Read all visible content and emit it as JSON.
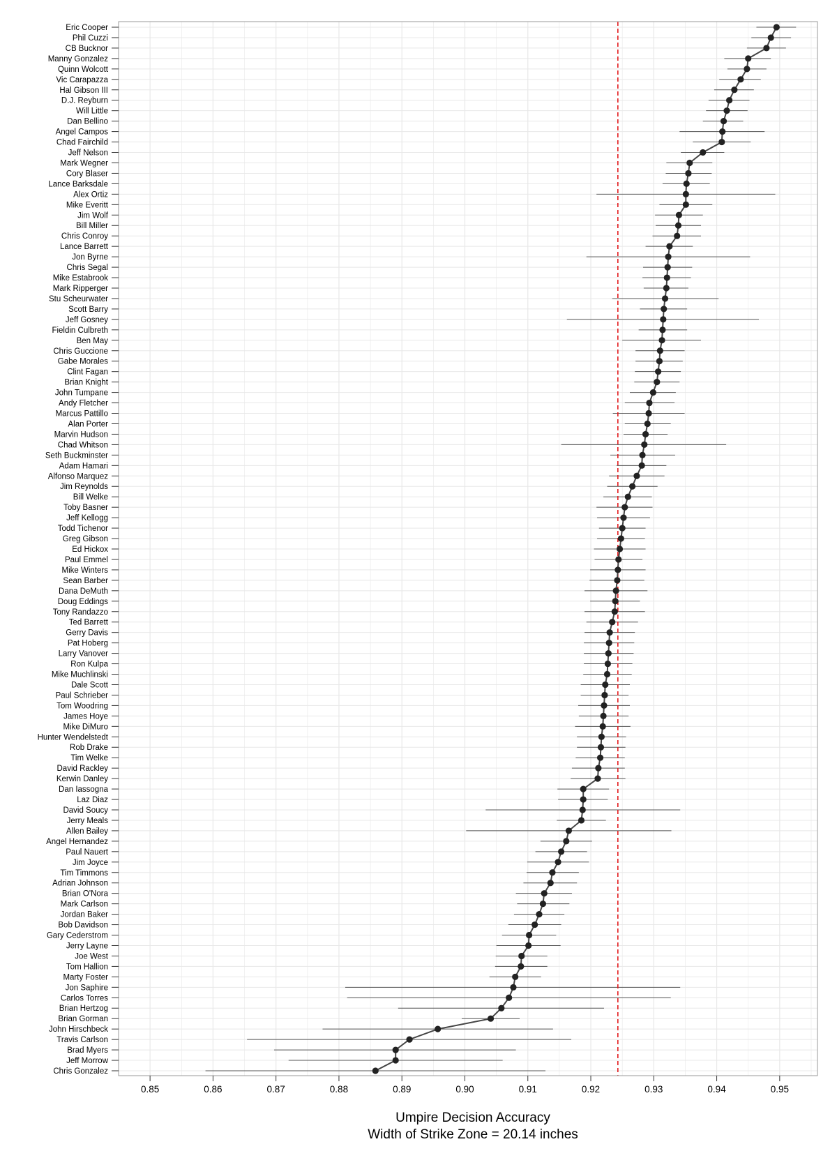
{
  "chart_data": {
    "type": "scatter",
    "title": "",
    "xlabel": "Umpire Decision Accuracy",
    "subtitle": "Width of Strike Zone = 20.14 inches",
    "ylabel": "",
    "xlim": [
      0.845,
      0.956
    ],
    "x_ticks": [
      "0.85",
      "0.86",
      "0.87",
      "0.88",
      "0.89",
      "0.90",
      "0.91",
      "0.92",
      "0.93",
      "0.94",
      "0.95"
    ],
    "x_tick_values": [
      0.85,
      0.86,
      0.87,
      0.88,
      0.89,
      0.9,
      0.91,
      0.92,
      0.93,
      0.94,
      0.95
    ],
    "reference_line": 0.9243,
    "grid": true,
    "connected": true,
    "points": [
      {
        "name": "Eric Cooper",
        "x": 0.9495,
        "lo": 0.9463,
        "hi": 0.9526
      },
      {
        "name": "Phil Cuzzi",
        "x": 0.9486,
        "lo": 0.9455,
        "hi": 0.9518
      },
      {
        "name": "CB Bucknor",
        "x": 0.9479,
        "lo": 0.9448,
        "hi": 0.951
      },
      {
        "name": "Manny Gonzalez",
        "x": 0.945,
        "lo": 0.9412,
        "hi": 0.9486
      },
      {
        "name": "Quinn Wolcott",
        "x": 0.9448,
        "lo": 0.9417,
        "hi": 0.9479
      },
      {
        "name": "Vic Carapazza",
        "x": 0.9438,
        "lo": 0.9404,
        "hi": 0.947
      },
      {
        "name": "Hal Gibson III",
        "x": 0.9428,
        "lo": 0.9396,
        "hi": 0.9459
      },
      {
        "name": "D.J. Reyburn",
        "x": 0.942,
        "lo": 0.9387,
        "hi": 0.9452
      },
      {
        "name": "Will Little",
        "x": 0.9416,
        "lo": 0.9383,
        "hi": 0.9449
      },
      {
        "name": "Dan Bellino",
        "x": 0.9411,
        "lo": 0.9378,
        "hi": 0.9442
      },
      {
        "name": "Angel Campos",
        "x": 0.9409,
        "lo": 0.9341,
        "hi": 0.9476
      },
      {
        "name": "Chad Fairchild",
        "x": 0.9408,
        "lo": 0.9362,
        "hi": 0.9454
      },
      {
        "name": "Jeff Nelson",
        "x": 0.9378,
        "lo": 0.9343,
        "hi": 0.9412
      },
      {
        "name": "Mark Wegner",
        "x": 0.9357,
        "lo": 0.932,
        "hi": 0.9393
      },
      {
        "name": "Cory Blaser",
        "x": 0.9355,
        "lo": 0.9319,
        "hi": 0.9392
      },
      {
        "name": "Lance Barksdale",
        "x": 0.9352,
        "lo": 0.9314,
        "hi": 0.9389
      },
      {
        "name": "Alex Ortiz",
        "x": 0.9351,
        "lo": 0.9209,
        "hi": 0.9493
      },
      {
        "name": "Mike Everitt",
        "x": 0.9351,
        "lo": 0.9309,
        "hi": 0.9393
      },
      {
        "name": "Jim Wolf",
        "x": 0.934,
        "lo": 0.9302,
        "hi": 0.9378
      },
      {
        "name": "Bill Miller",
        "x": 0.9339,
        "lo": 0.9303,
        "hi": 0.9375
      },
      {
        "name": "Chris Conroy",
        "x": 0.9337,
        "lo": 0.9298,
        "hi": 0.9375
      },
      {
        "name": "Lance Barrett",
        "x": 0.9325,
        "lo": 0.9287,
        "hi": 0.9362
      },
      {
        "name": "Jon Byrne",
        "x": 0.9323,
        "lo": 0.9193,
        "hi": 0.9453
      },
      {
        "name": "Chris Segal",
        "x": 0.9322,
        "lo": 0.9283,
        "hi": 0.9361
      },
      {
        "name": "Mike Estabrook",
        "x": 0.9321,
        "lo": 0.9282,
        "hi": 0.9359
      },
      {
        "name": "Mark Ripperger",
        "x": 0.932,
        "lo": 0.9284,
        "hi": 0.9355
      },
      {
        "name": "Stu Scheurwater",
        "x": 0.9318,
        "lo": 0.9234,
        "hi": 0.9403
      },
      {
        "name": "Scott Barry",
        "x": 0.9316,
        "lo": 0.9278,
        "hi": 0.9353
      },
      {
        "name": "Jeff Gosney",
        "x": 0.9315,
        "lo": 0.9162,
        "hi": 0.9467
      },
      {
        "name": "Fieldin Culbreth",
        "x": 0.9314,
        "lo": 0.9276,
        "hi": 0.9353
      },
      {
        "name": "Ben May",
        "x": 0.9313,
        "lo": 0.925,
        "hi": 0.9375
      },
      {
        "name": "Chris Guccione",
        "x": 0.931,
        "lo": 0.9271,
        "hi": 0.9349
      },
      {
        "name": "Gabe Morales",
        "x": 0.9309,
        "lo": 0.9271,
        "hi": 0.9346
      },
      {
        "name": "Clint Fagan",
        "x": 0.9307,
        "lo": 0.927,
        "hi": 0.9343
      },
      {
        "name": "Brian Knight",
        "x": 0.9305,
        "lo": 0.9269,
        "hi": 0.9341
      },
      {
        "name": "John Tumpane",
        "x": 0.9299,
        "lo": 0.9262,
        "hi": 0.9335
      },
      {
        "name": "Andy Fletcher",
        "x": 0.9293,
        "lo": 0.9254,
        "hi": 0.9333
      },
      {
        "name": "Marcus Pattillo",
        "x": 0.9292,
        "lo": 0.9235,
        "hi": 0.9349
      },
      {
        "name": "Alan Porter",
        "x": 0.929,
        "lo": 0.9254,
        "hi": 0.9327
      },
      {
        "name": "Marvin Hudson",
        "x": 0.9287,
        "lo": 0.9252,
        "hi": 0.9322
      },
      {
        "name": "Chad Whitson",
        "x": 0.9285,
        "lo": 0.9153,
        "hi": 0.9415
      },
      {
        "name": "Seth Buckminster",
        "x": 0.9282,
        "lo": 0.9231,
        "hi": 0.9334
      },
      {
        "name": "Adam Hamari",
        "x": 0.9281,
        "lo": 0.9241,
        "hi": 0.932
      },
      {
        "name": "Alfonso Marquez",
        "x": 0.9273,
        "lo": 0.9229,
        "hi": 0.9317
      },
      {
        "name": "Jim Reynolds",
        "x": 0.9266,
        "lo": 0.9226,
        "hi": 0.9306
      },
      {
        "name": "Bill Welke",
        "x": 0.9259,
        "lo": 0.922,
        "hi": 0.9297
      },
      {
        "name": "Toby Basner",
        "x": 0.9254,
        "lo": 0.9209,
        "hi": 0.9298
      },
      {
        "name": "Jeff Kellogg",
        "x": 0.9252,
        "lo": 0.921,
        "hi": 0.9294
      },
      {
        "name": "Todd Tichenor",
        "x": 0.925,
        "lo": 0.9213,
        "hi": 0.9287
      },
      {
        "name": "Greg Gibson",
        "x": 0.9248,
        "lo": 0.921,
        "hi": 0.9286
      },
      {
        "name": "Ed Hickox",
        "x": 0.9246,
        "lo": 0.9205,
        "hi": 0.9287
      },
      {
        "name": "Paul Emmel",
        "x": 0.9244,
        "lo": 0.9206,
        "hi": 0.9282
      },
      {
        "name": "Mike Winters",
        "x": 0.9243,
        "lo": 0.9199,
        "hi": 0.9287
      },
      {
        "name": "Sean Barber",
        "x": 0.9242,
        "lo": 0.9198,
        "hi": 0.9285
      },
      {
        "name": "Dana DeMuth",
        "x": 0.924,
        "lo": 0.919,
        "hi": 0.929
      },
      {
        "name": "Doug Eddings",
        "x": 0.9239,
        "lo": 0.9199,
        "hi": 0.9278
      },
      {
        "name": "Tony Randazzo",
        "x": 0.9238,
        "lo": 0.919,
        "hi": 0.9286
      },
      {
        "name": "Ted Barrett",
        "x": 0.9234,
        "lo": 0.9193,
        "hi": 0.9275
      },
      {
        "name": "Gerry Davis",
        "x": 0.923,
        "lo": 0.919,
        "hi": 0.927
      },
      {
        "name": "Pat Hoberg",
        "x": 0.9229,
        "lo": 0.9189,
        "hi": 0.9269
      },
      {
        "name": "Larry Vanover",
        "x": 0.9228,
        "lo": 0.9189,
        "hi": 0.9268
      },
      {
        "name": "Ron Kulpa",
        "x": 0.9227,
        "lo": 0.9189,
        "hi": 0.9266
      },
      {
        "name": "Mike Muchlinski",
        "x": 0.9226,
        "lo": 0.9188,
        "hi": 0.9265
      },
      {
        "name": "Dale Scott",
        "x": 0.9223,
        "lo": 0.9184,
        "hi": 0.9262
      },
      {
        "name": "Paul Schrieber",
        "x": 0.9222,
        "lo": 0.9184,
        "hi": 0.926
      },
      {
        "name": "Tom Woodring",
        "x": 0.9221,
        "lo": 0.918,
        "hi": 0.9262
      },
      {
        "name": "James Hoye",
        "x": 0.922,
        "lo": 0.9181,
        "hi": 0.926
      },
      {
        "name": "Mike DiMuro",
        "x": 0.9219,
        "lo": 0.9175,
        "hi": 0.9263
      },
      {
        "name": "Hunter Wendelstedt",
        "x": 0.9217,
        "lo": 0.9178,
        "hi": 0.9256
      },
      {
        "name": "Rob Drake",
        "x": 0.9216,
        "lo": 0.9178,
        "hi": 0.9255
      },
      {
        "name": "Tim Welke",
        "x": 0.9215,
        "lo": 0.9176,
        "hi": 0.9254
      },
      {
        "name": "David Rackley",
        "x": 0.9212,
        "lo": 0.917,
        "hi": 0.9254
      },
      {
        "name": "Kerwin Danley",
        "x": 0.9211,
        "lo": 0.9168,
        "hi": 0.9255
      },
      {
        "name": "Dan Iassogna",
        "x": 0.9188,
        "lo": 0.9147,
        "hi": 0.9229
      },
      {
        "name": "Laz Diaz",
        "x": 0.9188,
        "lo": 0.9148,
        "hi": 0.9227
      },
      {
        "name": "David Soucy",
        "x": 0.9187,
        "lo": 0.9033,
        "hi": 0.9342
      },
      {
        "name": "Jerry Meals",
        "x": 0.9185,
        "lo": 0.9146,
        "hi": 0.9224
      },
      {
        "name": "Allen Bailey",
        "x": 0.9165,
        "lo": 0.9002,
        "hi": 0.9328
      },
      {
        "name": "Angel Hernandez",
        "x": 0.9161,
        "lo": 0.912,
        "hi": 0.9202
      },
      {
        "name": "Paul Nauert",
        "x": 0.9153,
        "lo": 0.9112,
        "hi": 0.9194
      },
      {
        "name": "Jim Joyce",
        "x": 0.9148,
        "lo": 0.9099,
        "hi": 0.9197
      },
      {
        "name": "Tim Timmons",
        "x": 0.9139,
        "lo": 0.9098,
        "hi": 0.9181
      },
      {
        "name": "Adrian Johnson",
        "x": 0.9136,
        "lo": 0.9093,
        "hi": 0.9178
      },
      {
        "name": "Brian O'Nora",
        "x": 0.9126,
        "lo": 0.9081,
        "hi": 0.917
      },
      {
        "name": "Mark Carlson",
        "x": 0.9124,
        "lo": 0.9083,
        "hi": 0.9166
      },
      {
        "name": "Jordan Baker",
        "x": 0.9118,
        "lo": 0.9078,
        "hi": 0.9158
      },
      {
        "name": "Bob Davidson",
        "x": 0.9111,
        "lo": 0.9069,
        "hi": 0.9153
      },
      {
        "name": "Gary Cederstrom",
        "x": 0.9102,
        "lo": 0.9059,
        "hi": 0.9145
      },
      {
        "name": "Jerry Layne",
        "x": 0.9101,
        "lo": 0.905,
        "hi": 0.9152
      },
      {
        "name": "Joe West",
        "x": 0.909,
        "lo": 0.9049,
        "hi": 0.9131
      },
      {
        "name": "Tom Hallion",
        "x": 0.9089,
        "lo": 0.9048,
        "hi": 0.9131
      },
      {
        "name": "Marty Foster",
        "x": 0.908,
        "lo": 0.9039,
        "hi": 0.9121
      },
      {
        "name": "Jon Saphire",
        "x": 0.9077,
        "lo": 0.881,
        "hi": 0.9342
      },
      {
        "name": "Carlos Torres",
        "x": 0.907,
        "lo": 0.8813,
        "hi": 0.9327
      },
      {
        "name": "Brian Hertzog",
        "x": 0.9058,
        "lo": 0.8894,
        "hi": 0.9221
      },
      {
        "name": "Brian Gorman",
        "x": 0.9041,
        "lo": 0.8995,
        "hi": 0.9087
      },
      {
        "name": "John Hirschbeck",
        "x": 0.8957,
        "lo": 0.8774,
        "hi": 0.914
      },
      {
        "name": "Travis Carlson",
        "x": 0.8912,
        "lo": 0.8654,
        "hi": 0.9169
      },
      {
        "name": "Brad Myers",
        "x": 0.889,
        "lo": 0.8697,
        "hi": 0.9081
      },
      {
        "name": "Jeff Morrow",
        "x": 0.889,
        "lo": 0.872,
        "hi": 0.906
      },
      {
        "name": "Chris Gonzalez",
        "x": 0.8858,
        "lo": 0.8588,
        "hi": 0.9128
      }
    ]
  },
  "style": {
    "point_color": "#222222",
    "line_color": "#444444",
    "ci_color": "#555555",
    "reference_color": "#e31a1c",
    "grid_color": "#e8e8e8",
    "panel_border": "#999999"
  }
}
